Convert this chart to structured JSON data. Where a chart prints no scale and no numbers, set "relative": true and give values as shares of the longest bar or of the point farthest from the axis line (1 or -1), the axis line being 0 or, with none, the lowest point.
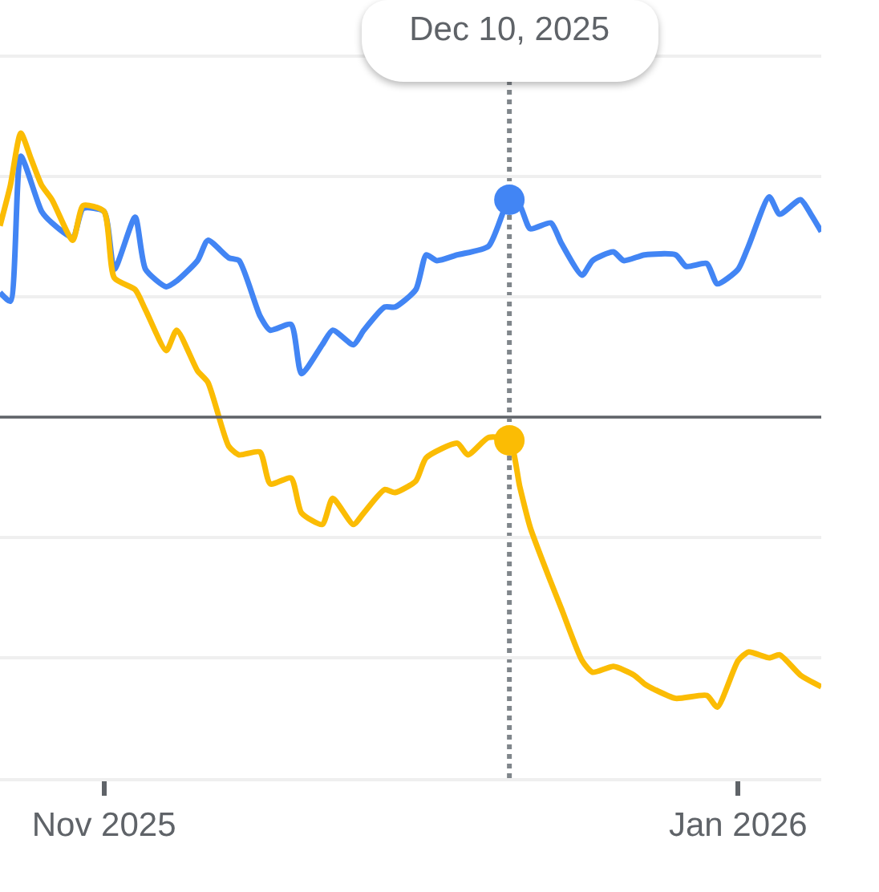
{
  "chart_data": {
    "type": "line",
    "relative": true,
    "xlim": [
      "2025-10-22",
      "2026-01-09"
    ],
    "xticks": [
      {
        "value": "2025-11-01",
        "label": "Nov 2025"
      },
      {
        "value": "2026-01-01",
        "label": "Jan 2026"
      }
    ],
    "tick_labels": "x",
    "grid": "y",
    "ref_lines": [
      {
        "axis": "x",
        "value": "2025-12-10",
        "label": "Dec 10, 2025",
        "color": "#80868b",
        "line_style": "dotted"
      },
      {
        "axis": "y",
        "value": 0,
        "color": "#5f6368"
      }
    ],
    "series": [
      {
        "color": "#4285f4",
        "x": [
          "2025-10-22",
          "2025-10-23",
          "2025-10-24",
          "2025-10-26",
          "2025-10-27",
          "2025-10-29",
          "2025-10-30",
          "2025-11-01",
          "2025-11-02",
          "2025-11-04",
          "2025-11-05",
          "2025-11-07",
          "2025-11-08",
          "2025-11-10",
          "2025-11-11",
          "2025-11-13",
          "2025-11-14",
          "2025-11-16",
          "2025-11-17",
          "2025-11-19",
          "2025-11-20",
          "2025-11-22",
          "2025-11-23",
          "2025-11-25",
          "2025-11-26",
          "2025-11-28",
          "2025-11-29",
          "2025-12-01",
          "2025-12-02",
          "2025-12-03",
          "2025-12-05",
          "2025-12-08",
          "2025-12-10",
          "2025-12-11",
          "2025-12-12",
          "2025-12-14",
          "2025-12-15",
          "2025-12-17",
          "2025-12-18",
          "2025-12-20",
          "2025-12-21",
          "2025-12-23",
          "2025-12-26",
          "2025-12-27",
          "2025-12-29",
          "2025-12-30",
          "2026-01-01",
          "2026-01-02",
          "2026-01-04",
          "2026-01-05",
          "2026-01-07",
          "2026-01-08",
          "2026-01-09"
        ],
        "values": [
          0.43,
          0.4,
          0.9,
          0.71,
          0.67,
          0.62,
          0.72,
          0.71,
          0.51,
          0.69,
          0.51,
          0.45,
          0.47,
          0.54,
          0.61,
          0.55,
          0.54,
          0.35,
          0.3,
          0.32,
          0.15,
          0.25,
          0.3,
          0.25,
          0.3,
          0.38,
          0.38,
          0.44,
          0.56,
          0.54,
          0.56,
          0.59,
          0.75,
          0.73,
          0.65,
          0.67,
          0.6,
          0.49,
          0.54,
          0.57,
          0.54,
          0.56,
          0.56,
          0.52,
          0.53,
          0.46,
          0.51,
          0.59,
          0.76,
          0.7,
          0.75,
          0.7,
          0.64
        ]
      },
      {
        "color": "#fbbc04",
        "x": [
          "2025-10-22",
          "2025-10-23",
          "2025-10-24",
          "2025-10-25",
          "2025-10-26",
          "2025-10-27",
          "2025-10-29",
          "2025-10-30",
          "2025-11-01",
          "2025-11-02",
          "2025-11-04",
          "2025-11-05",
          "2025-11-07",
          "2025-11-08",
          "2025-11-10",
          "2025-11-11",
          "2025-11-13",
          "2025-11-14",
          "2025-11-16",
          "2025-11-17",
          "2025-11-19",
          "2025-11-20",
          "2025-11-22",
          "2025-11-23",
          "2025-11-25",
          "2025-11-26",
          "2025-11-28",
          "2025-11-29",
          "2025-12-01",
          "2025-12-02",
          "2025-12-05",
          "2025-12-06",
          "2025-12-08",
          "2025-12-10",
          "2025-12-11",
          "2025-12-12",
          "2025-12-14",
          "2025-12-15",
          "2025-12-17",
          "2025-12-18",
          "2025-12-20",
          "2025-12-22",
          "2025-12-23",
          "2025-12-24",
          "2025-12-26",
          "2025-12-29",
          "2025-12-30",
          "2026-01-01",
          "2026-01-02",
          "2026-01-04",
          "2026-01-05",
          "2026-01-07",
          "2026-01-09"
        ],
        "values": [
          0.66,
          0.8,
          0.98,
          0.89,
          0.8,
          0.75,
          0.61,
          0.73,
          0.71,
          0.48,
          0.44,
          0.37,
          0.23,
          0.3,
          0.16,
          0.12,
          -0.1,
          -0.13,
          -0.12,
          -0.23,
          -0.21,
          -0.33,
          -0.37,
          -0.28,
          -0.37,
          -0.33,
          -0.25,
          -0.26,
          -0.22,
          -0.14,
          -0.09,
          -0.13,
          -0.07,
          -0.08,
          -0.24,
          -0.38,
          -0.57,
          -0.66,
          -0.84,
          -0.88,
          -0.86,
          -0.89,
          -0.92,
          -0.94,
          -0.97,
          -0.96,
          -1.0,
          -0.84,
          -0.81,
          -0.83,
          -0.82,
          -0.89,
          -0.93
        ]
      },
      {
        "type": "scatter",
        "marker": "circle",
        "color": "#4285f4",
        "x": [
          "2025-12-10"
        ],
        "values": [
          0.75
        ]
      },
      {
        "type": "scatter",
        "marker": "circle",
        "color": "#fbbc04",
        "x": [
          "2025-12-10"
        ],
        "values": [
          -0.08
        ]
      }
    ]
  }
}
